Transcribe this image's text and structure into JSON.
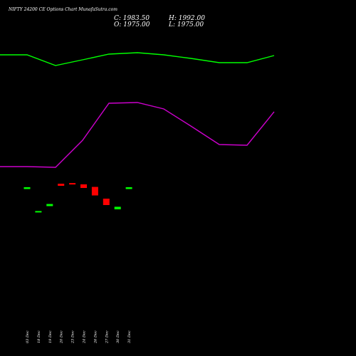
{
  "header": {
    "title": "NIFTY 24200  CE Options  Chart MunafaSutra.com",
    "close": "C: 1983.50",
    "high": "H: 1992.00",
    "open": "O: 1975.00",
    "low": "L: 1975.00"
  },
  "chart_data": {
    "type": "candlestick",
    "categories": [
      "03 Dec",
      "18 Dec",
      "19 Dec",
      "20 Dec",
      "23 Dec",
      "24 Dec",
      "26 Dec",
      "27 Dec",
      "30 Dec",
      "31 Dec"
    ],
    "candles": [
      {
        "date": "03 Dec",
        "open": 1975,
        "close": 1983.5,
        "color": "up"
      },
      {
        "date": "18 Dec",
        "open": 1870,
        "close": 1872,
        "color": "up"
      },
      {
        "date": "19 Dec",
        "open": 1895,
        "close": 1905,
        "color": "up"
      },
      {
        "date": "20 Dec",
        "open": 2000,
        "close": 1990,
        "color": "down"
      },
      {
        "date": "23 Dec",
        "open": 2003,
        "close": 1998,
        "color": "down"
      },
      {
        "date": "24 Dec",
        "open": 1997,
        "close": 1980,
        "color": "down"
      },
      {
        "date": "26 Dec",
        "open": 1985,
        "close": 1945,
        "color": "down"
      },
      {
        "date": "27 Dec",
        "open": 1930,
        "close": 1900,
        "color": "down"
      },
      {
        "date": "30 Dec",
        "open": 1880,
        "close": 1892,
        "color": "up"
      },
      {
        "date": "31 Dec",
        "open": 1975,
        "close": 1983.5,
        "color": "up"
      }
    ],
    "lines": [
      {
        "color": "#00ff00",
        "x": [
          0,
          38,
          78,
          116,
          153,
          193,
          230,
          268,
          308,
          347,
          385
        ],
        "y": [
          77,
          77,
          92,
          84,
          76,
          74,
          77,
          82,
          88,
          88,
          78
        ]
      },
      {
        "color": "#cc00cc",
        "x": [
          0,
          38,
          78,
          116,
          153,
          193,
          230,
          268,
          308,
          347,
          385
        ],
        "y": [
          234,
          234,
          235,
          197,
          145,
          144,
          153,
          177,
          203,
          204,
          157
        ]
      }
    ],
    "colors": {
      "up": "#00ff00",
      "down": "#ff0000",
      "background": "#000000"
    },
    "grid": false
  }
}
